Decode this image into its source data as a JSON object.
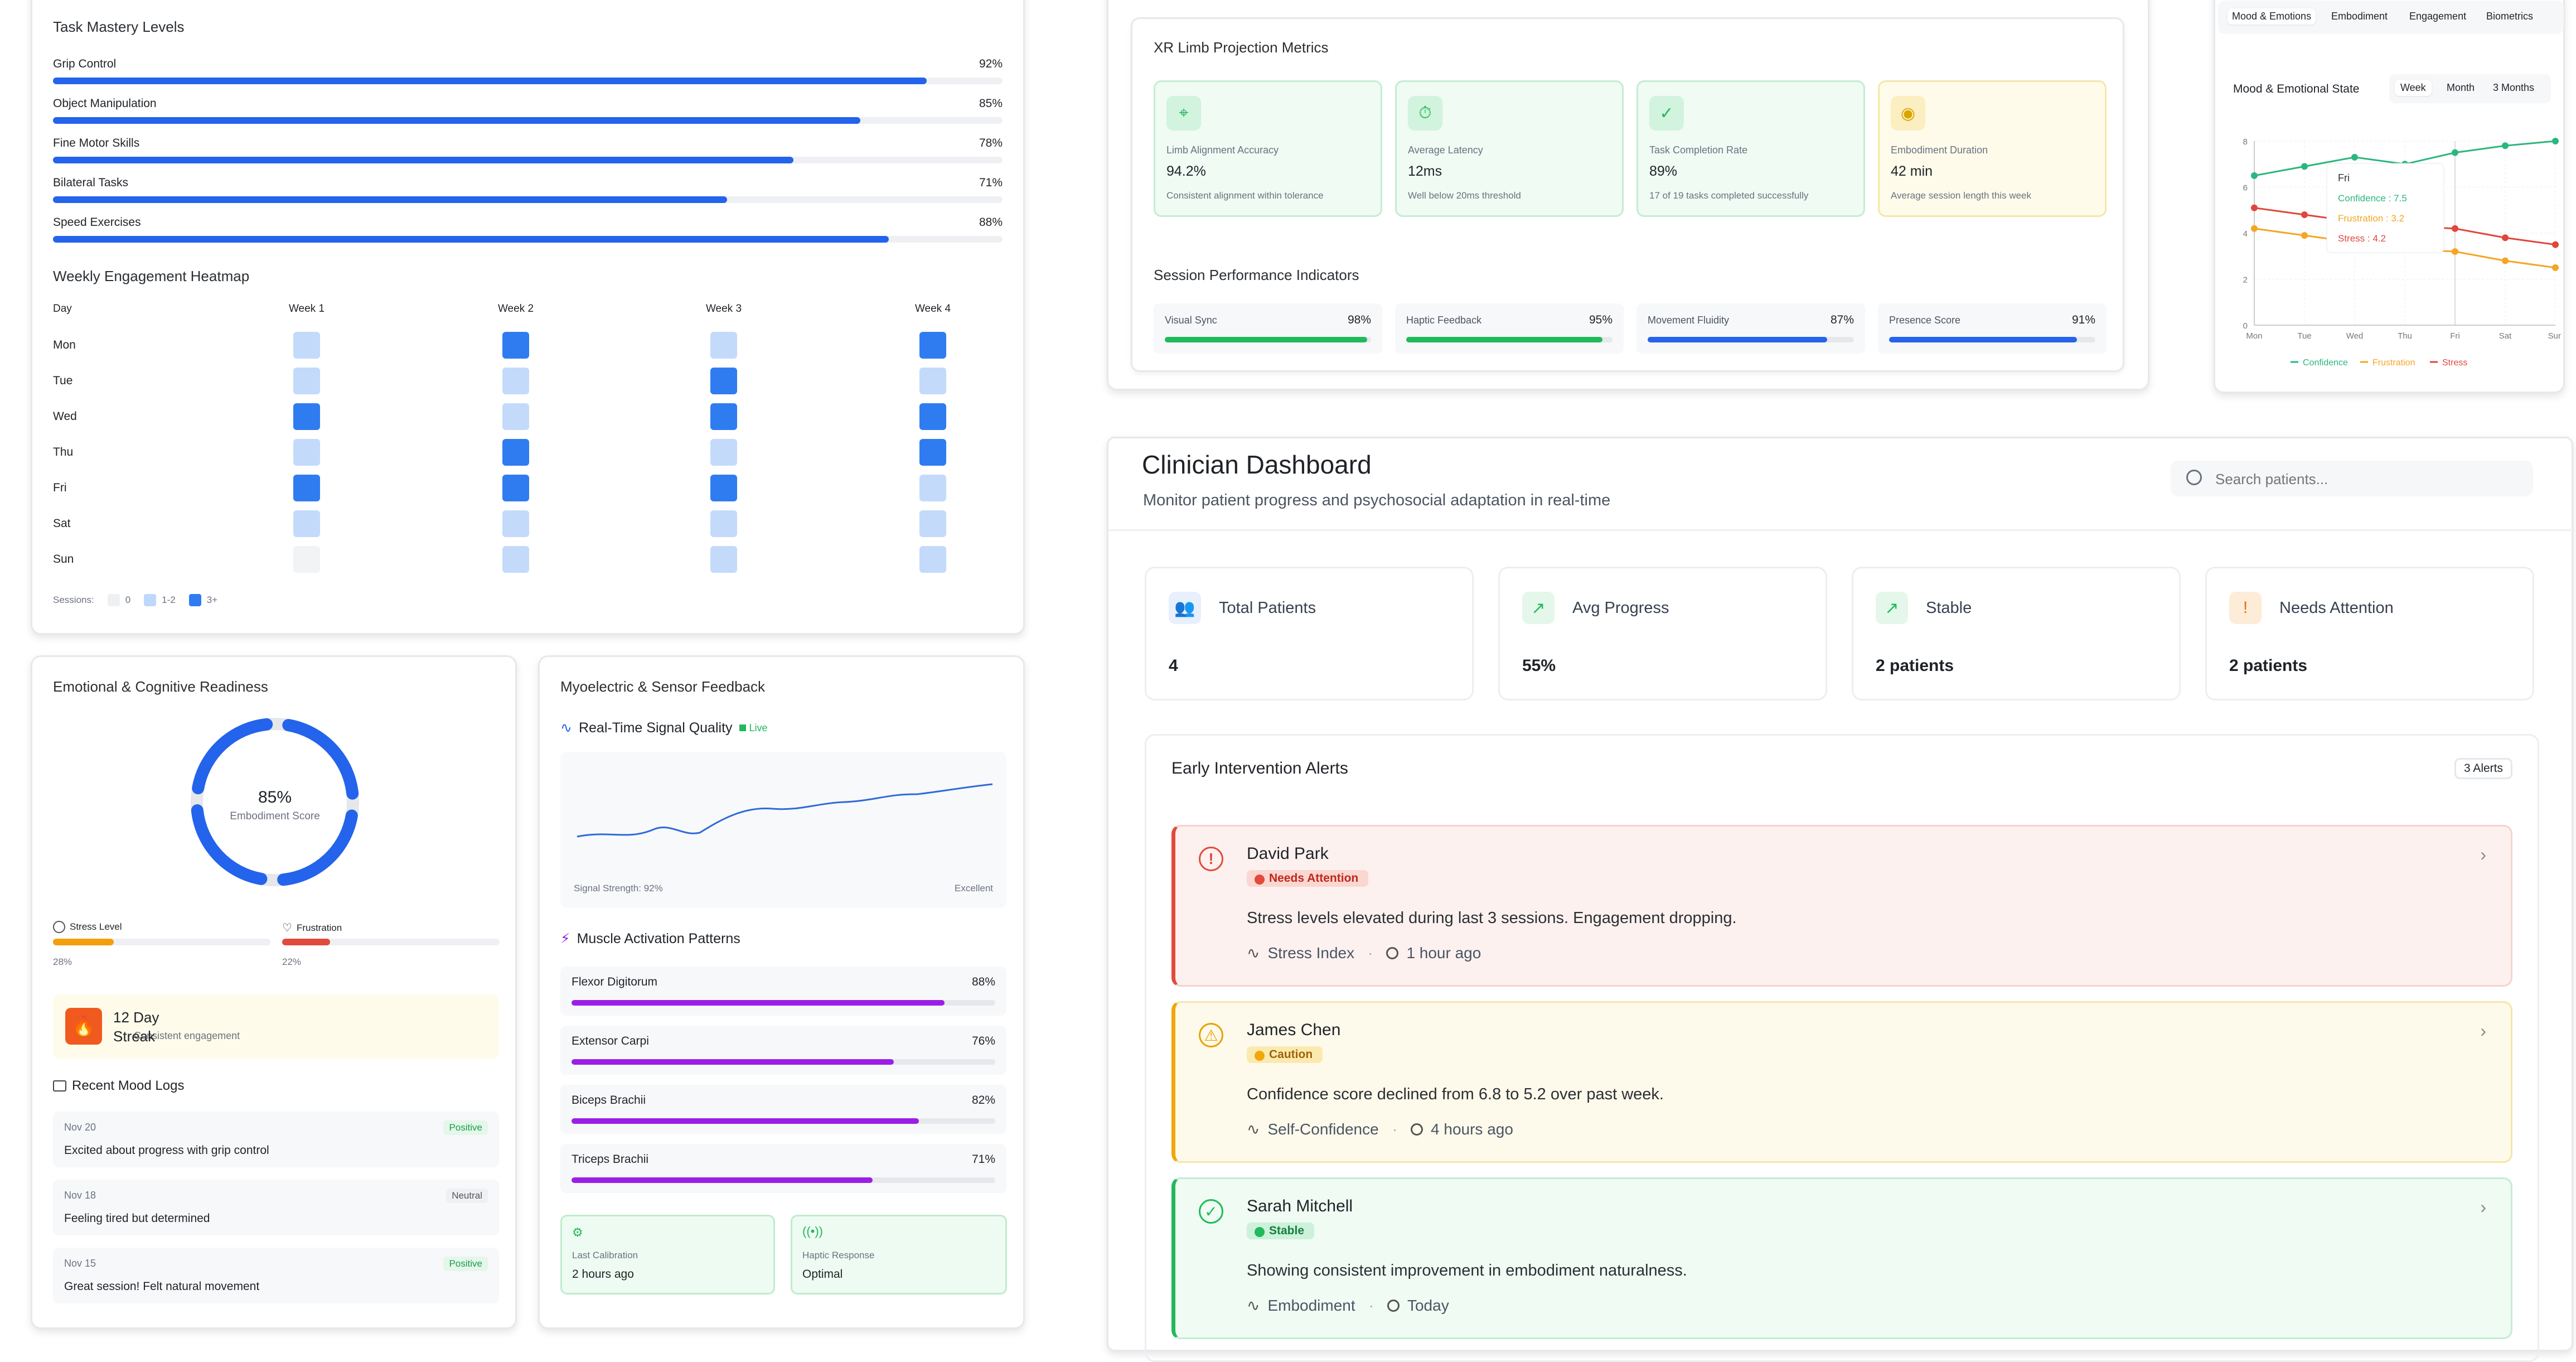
{
  "colors": {
    "blue": "#2463eb",
    "lightblue": "#bfd7fb",
    "green": "#21b95b",
    "purple": "#9b1ee6",
    "orange": "#f59e0b",
    "red": "#e24a3b"
  },
  "task_mastery": {
    "title": "Task Mastery Levels",
    "items": [
      {
        "label": "Grip Control",
        "value": "92%",
        "pct": 92
      },
      {
        "label": "Object Manipulation",
        "value": "85%",
        "pct": 85
      },
      {
        "label": "Fine Motor Skills",
        "value": "78%",
        "pct": 78
      },
      {
        "label": "Bilateral Tasks",
        "value": "71%",
        "pct": 71
      },
      {
        "label": "Speed Exercises",
        "value": "88%",
        "pct": 88
      }
    ]
  },
  "heatmap": {
    "title": "Weekly Engagement Heatmap",
    "day_header": "Day",
    "weeks": [
      "Week 1",
      "Week 2",
      "Week 3",
      "Week 4"
    ],
    "days": [
      "Mon",
      "Tue",
      "Wed",
      "Thu",
      "Fri",
      "Sat",
      "Sun"
    ],
    "levels": [
      [
        1,
        2,
        1,
        2
      ],
      [
        1,
        1,
        2,
        1
      ],
      [
        2,
        1,
        2,
        2
      ],
      [
        1,
        2,
        1,
        2
      ],
      [
        2,
        2,
        2,
        1
      ],
      [
        1,
        1,
        1,
        1
      ],
      [
        0,
        1,
        1,
        1
      ]
    ],
    "legend_label": "Sessions:",
    "legend": [
      "0",
      "1-2",
      "3+"
    ]
  },
  "readiness": {
    "title": "Emotional & Cognitive Readiness",
    "score": "85%",
    "score_label": "Embodiment Score",
    "stress_label": "Stress Level",
    "stress_value": "28%",
    "stress_pct": 28,
    "frustration_label": "Frustration",
    "frustration_value": "22%",
    "frustration_pct": 22,
    "streak_title": "12 Day",
    "streak_overlap": "Streak",
    "streak_sub": "Consistent engagement",
    "mood_logs_title": "Recent Mood Logs",
    "logs": [
      {
        "date": "Nov 20",
        "text": "Excited about progress with grip control",
        "badge": "Positive"
      },
      {
        "date": "Nov 18",
        "text": "Feeling tired but determined",
        "badge": "Neutral"
      },
      {
        "date": "Nov 15",
        "text": "Great session! Felt natural movement",
        "badge": "Positive"
      }
    ]
  },
  "myo": {
    "title": "Myoelectric & Sensor Feedback",
    "signal_title": "Real-Time Signal Quality",
    "live": "Live",
    "signal_strength": "Signal Strength: 92%",
    "signal_rating": "Excellent",
    "muscle_title": "Muscle Activation Patterns",
    "muscles": [
      {
        "label": "Flexor Digitorum",
        "value": "88%",
        "pct": 88
      },
      {
        "label": "Extensor Carpi",
        "value": "76%",
        "pct": 76
      },
      {
        "label": "Biceps Brachii",
        "value": "82%",
        "pct": 82
      },
      {
        "label": "Triceps Brachii",
        "value": "71%",
        "pct": 71
      }
    ],
    "calibration_label": "Last Calibration",
    "calibration_value": "2 hours ago",
    "haptic_label": "Haptic Response",
    "haptic_value": "Optimal"
  },
  "xr": {
    "title": "XR Limb Projection Metrics",
    "metrics": [
      {
        "label": "Limb Alignment Accuracy",
        "value": "94.2%",
        "note": "Consistent alignment within tolerance"
      },
      {
        "label": "Average Latency",
        "value": "12ms",
        "note": "Well below 20ms threshold"
      },
      {
        "label": "Task Completion Rate",
        "value": "89%",
        "note": "17 of 19 tasks completed successfully"
      },
      {
        "label": "Embodiment Duration",
        "value": "42 min",
        "note": "Average session length this week"
      }
    ],
    "session_title": "Session Performance Indicators",
    "indicators": [
      {
        "label": "Visual Sync",
        "value": "98%",
        "pct": 98
      },
      {
        "label": "Haptic Feedback",
        "value": "95%",
        "pct": 95
      },
      {
        "label": "Movement Fluidity",
        "value": "87%",
        "pct": 87
      },
      {
        "label": "Presence Score",
        "value": "91%",
        "pct": 91
      }
    ]
  },
  "mood_chart": {
    "tabs": [
      "Mood & Emotions",
      "Embodiment",
      "Engagement",
      "Biometrics"
    ],
    "title": "Mood & Emotional State",
    "ranges": [
      "Week",
      "Month",
      "3 Months"
    ],
    "tooltip_day": "Fri",
    "tooltip_lines": [
      "Confidence : 7.5",
      "Frustration : 3.2",
      "Stress : 4.2"
    ]
  },
  "chart_data": {
    "type": "line",
    "title": "Mood & Emotional State",
    "x": [
      "Mon",
      "Tue",
      "Wed",
      "Thu",
      "Fri",
      "Sat",
      "Sun"
    ],
    "series": [
      {
        "name": "Confidence",
        "color": "#2cb67d",
        "values": [
          6.5,
          6.9,
          7.3,
          7.0,
          7.5,
          7.8,
          8.0
        ]
      },
      {
        "name": "Frustration",
        "color": "#f5a524",
        "values": [
          4.2,
          3.9,
          3.6,
          3.3,
          3.2,
          2.8,
          2.5
        ]
      },
      {
        "name": "Stress",
        "color": "#e0463b",
        "values": [
          5.1,
          4.8,
          4.5,
          4.3,
          4.2,
          3.8,
          3.5
        ]
      }
    ],
    "ylim": [
      0,
      8
    ],
    "yticks": [
      "0",
      "2",
      "4",
      "6",
      "8"
    ],
    "legend_position": "bottom"
  },
  "clinician": {
    "title": "Clinician Dashboard",
    "subtitle": "Monitor patient progress and psychosocial adaptation in real-time",
    "search_placeholder": "Search patients...",
    "stats": [
      {
        "label": "Total Patients",
        "value": "4"
      },
      {
        "label": "Avg Progress",
        "value": "55%"
      },
      {
        "label": "Stable",
        "value": "2 patients"
      },
      {
        "label": "Needs Attention",
        "value": "2 patients"
      }
    ],
    "alerts_title": "Early Intervention Alerts",
    "alerts_count": "3 Alerts",
    "alerts": [
      {
        "name": "David Park",
        "badge": "Needs Attention",
        "message": "Stress levels elevated during last 3 sessions. Engagement dropping.",
        "metric": "Stress Index",
        "time": "1 hour ago"
      },
      {
        "name": "James Chen",
        "badge": "Caution",
        "message": "Confidence score declined from 6.8 to 5.2 over past week.",
        "metric": "Self-Confidence",
        "time": "4 hours ago"
      },
      {
        "name": "Sarah Mitchell",
        "badge": "Stable",
        "message": "Showing consistent improvement in embodiment naturalness.",
        "metric": "Embodiment",
        "time": "Today"
      }
    ]
  }
}
